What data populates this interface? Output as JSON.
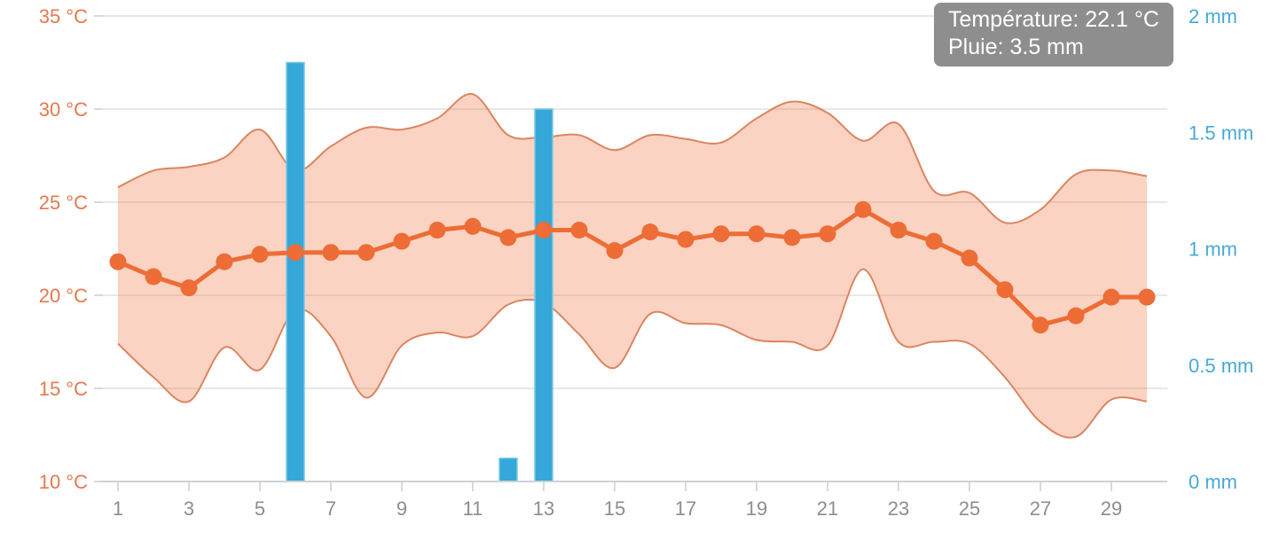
{
  "tooltip": {
    "line1": "Température: 22.1 °C",
    "line2": "Pluie: 3.5 mm"
  },
  "colors": {
    "temp_line": "#ee6c35",
    "temp_band_fill": "rgba(238,108,53,0.30)",
    "temp_band_stroke": "#dc8560",
    "rain_bar": "#35a7d8",
    "rain_bar_edge": "#7cc8e6",
    "left_axis_label": "#e4794e",
    "right_axis_label": "#47a9d4",
    "x_axis_label": "#8d8d8d",
    "gridline": "#e8e8e8",
    "axis_line": "#ccd2d6",
    "tick_mark": "#d9d9d9",
    "tooltip_bg": "#8a8a8a",
    "tooltip_text": "#ffffff"
  },
  "chart_data": {
    "type": "line",
    "description": "Daily temperature (avg line + min/max band, left axis) and rainfall (bars, right axis) over a 30-day month",
    "x": [
      1,
      2,
      3,
      4,
      5,
      6,
      7,
      8,
      9,
      10,
      11,
      12,
      13,
      14,
      15,
      16,
      17,
      18,
      19,
      20,
      21,
      22,
      23,
      24,
      25,
      26,
      27,
      28,
      29,
      30
    ],
    "series": [
      {
        "name": "temperature_avg",
        "type": "line",
        "axis": "left",
        "unit": "°C",
        "values": [
          21.8,
          21.0,
          20.4,
          21.8,
          22.2,
          22.3,
          22.3,
          22.3,
          22.9,
          23.5,
          23.7,
          23.1,
          23.5,
          23.5,
          22.4,
          23.4,
          23.0,
          23.3,
          23.3,
          23.1,
          23.3,
          24.6,
          23.5,
          22.9,
          22.0,
          20.3,
          18.4,
          18.9,
          19.9,
          19.9
        ]
      },
      {
        "name": "temperature_max",
        "type": "area_upper",
        "axis": "left",
        "unit": "°C",
        "values": [
          25.8,
          26.7,
          26.9,
          27.4,
          28.9,
          26.7,
          28.0,
          29.0,
          28.9,
          29.5,
          30.8,
          28.6,
          28.5,
          28.6,
          27.8,
          28.6,
          28.4,
          28.2,
          29.5,
          30.4,
          29.8,
          28.3,
          29.2,
          25.6,
          25.5,
          23.9,
          24.6,
          26.5,
          26.7,
          26.4
        ]
      },
      {
        "name": "temperature_min",
        "type": "area_lower",
        "axis": "left",
        "unit": "°C",
        "values": [
          17.4,
          15.6,
          14.3,
          17.2,
          16.0,
          19.2,
          17.8,
          14.5,
          17.3,
          18.0,
          17.8,
          19.5,
          19.6,
          17.9,
          16.1,
          19.0,
          18.5,
          18.4,
          17.6,
          17.5,
          17.3,
          21.4,
          17.5,
          17.5,
          17.4,
          15.6,
          13.2,
          12.4,
          14.4,
          14.3
        ]
      },
      {
        "name": "pluie",
        "type": "bar",
        "axis": "right",
        "unit": "mm",
        "values": [
          0,
          0,
          0,
          0,
          0,
          1.8,
          0,
          0,
          0,
          0,
          0,
          0.1,
          1.6,
          0,
          0,
          0,
          0,
          0,
          0,
          0,
          0,
          0,
          0,
          0,
          0,
          0,
          0,
          0,
          0,
          0
        ]
      }
    ],
    "y_left": {
      "min": 10,
      "max": 35,
      "tick_values": [
        35,
        30,
        25,
        20,
        15,
        10
      ],
      "tick_labels": [
        "35 °C",
        "30 °C",
        "25 °C",
        "20 °C",
        "15 °C",
        "10 °C"
      ]
    },
    "y_right": {
      "min": 0,
      "max": 2,
      "tick_values": [
        2,
        1.5,
        1,
        0.5,
        0
      ],
      "tick_labels": [
        "2 mm",
        "1.5 mm",
        "1 mm",
        "0.5 mm",
        "0 mm"
      ]
    },
    "x_axis": {
      "tick_values": [
        1,
        3,
        5,
        7,
        9,
        11,
        13,
        15,
        17,
        19,
        21,
        23,
        25,
        27,
        29
      ],
      "tick_labels": [
        "1",
        "3",
        "5",
        "7",
        "9",
        "11",
        "13",
        "15",
        "17",
        "19",
        "21",
        "23",
        "25",
        "27",
        "29"
      ]
    },
    "grid": "horizontal",
    "legend_position": "none"
  }
}
